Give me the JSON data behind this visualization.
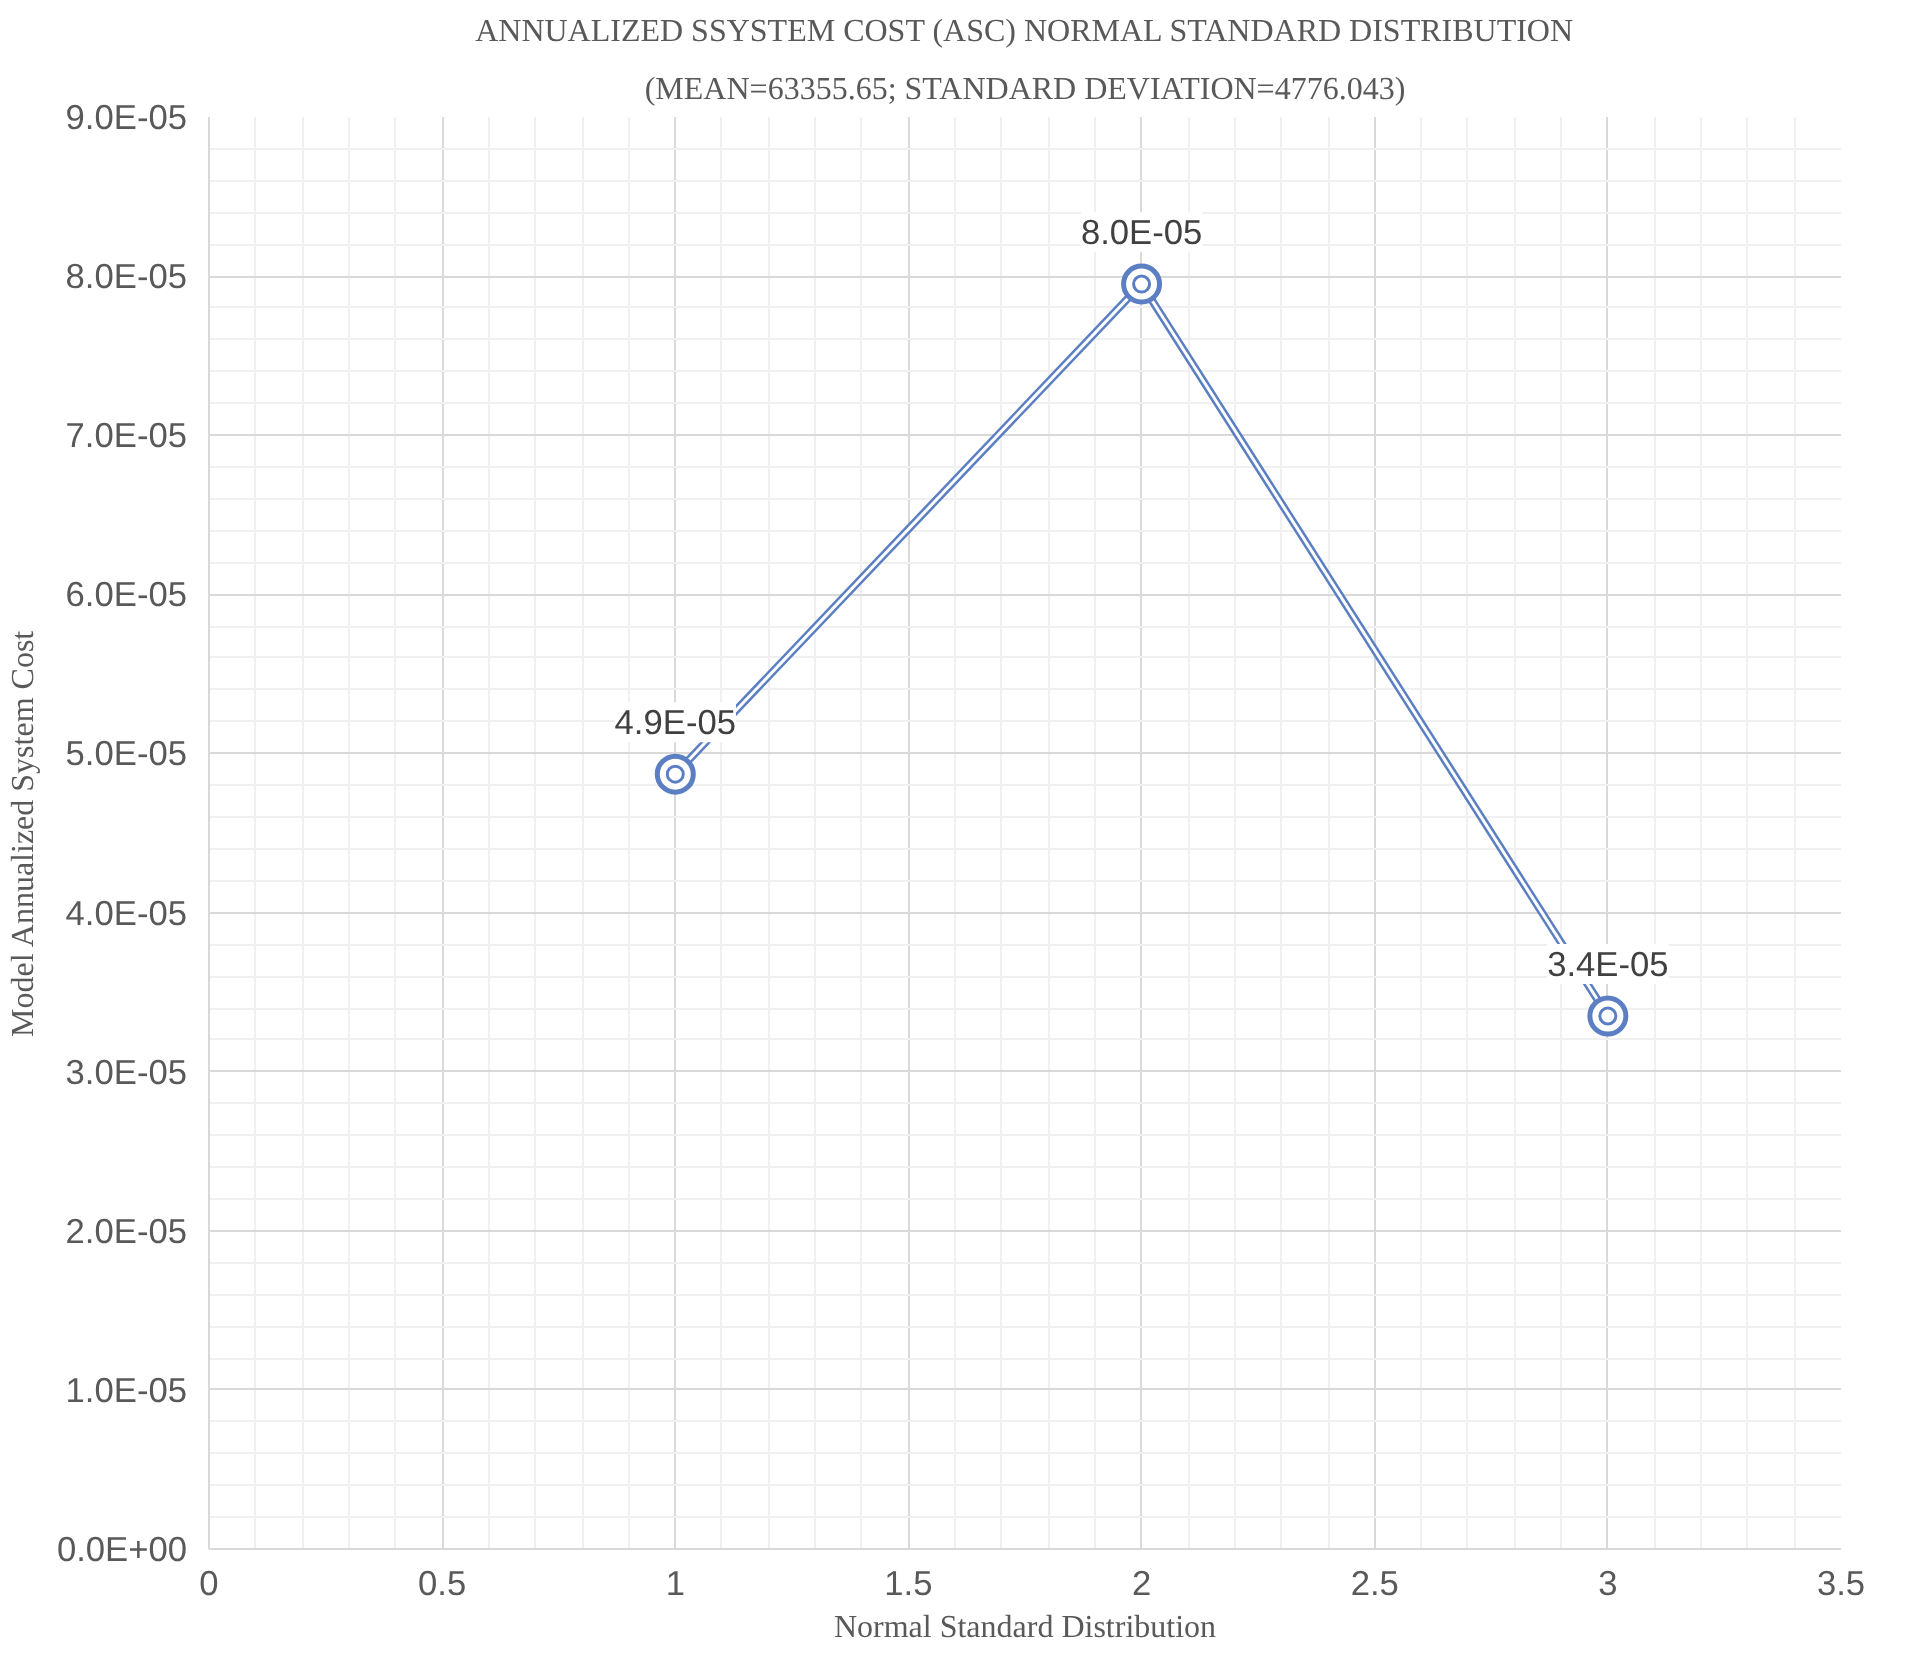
{
  "chart_data": {
    "type": "line",
    "title": "ANNUALIZED SSYSTEM COST (ASC) NORMAL STANDARD DISTRIBUTION",
    "subtitle": "(MEAN=63355.65; STANDARD DEVIATION=4776.043)",
    "xlabel": "Normal Standard Distribution",
    "ylabel": "Model Annualized System Cost",
    "x": [
      1,
      2,
      3
    ],
    "series": [
      {
        "color": "#5b7fc2",
        "values": [
          4.87e-05,
          7.95e-05,
          3.35e-05
        ],
        "value_labels": [
          "4.9E-05",
          "8.0E-05",
          "3.4E-05"
        ]
      }
    ],
    "xlim": [
      0,
      3.5
    ],
    "xticks": [
      0,
      0.5,
      1,
      1.5,
      2,
      2.5,
      3,
      3.5
    ],
    "ylim": [
      0,
      9e-05
    ],
    "yticks": [
      {
        "value": 0,
        "label": "0.0E+00"
      },
      {
        "value": 1e-05,
        "label": "1.0E-05"
      },
      {
        "value": 2e-05,
        "label": "2.0E-05"
      },
      {
        "value": 3e-05,
        "label": "3.0E-05"
      },
      {
        "value": 4e-05,
        "label": "4.0E-05"
      },
      {
        "value": 5e-05,
        "label": "5.0E-05"
      },
      {
        "value": 6e-05,
        "label": "6.0E-05"
      },
      {
        "value": 7e-05,
        "label": "7.0E-05"
      },
      {
        "value": 8e-05,
        "label": "8.0E-05"
      },
      {
        "value": 9e-05,
        "label": "9.0E-05"
      }
    ],
    "grid": true,
    "marker": "circle",
    "line_style": "solid"
  }
}
